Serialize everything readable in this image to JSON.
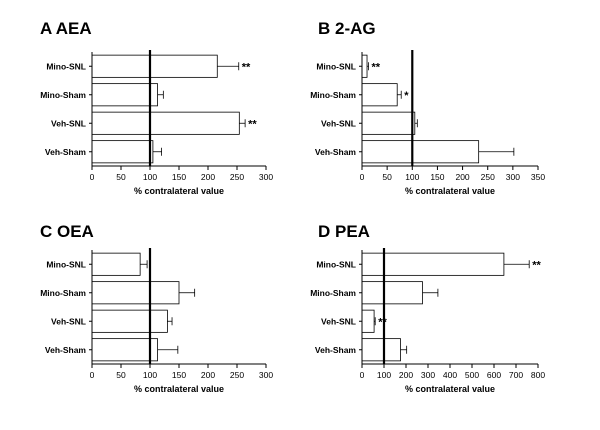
{
  "chart_data": [
    {
      "type": "bar",
      "panel": "A",
      "title": "A  AEA",
      "orientation": "horizontal",
      "categories": [
        "Mino-SNL",
        "Mino-Sham",
        "Veh-SNL",
        "Veh-Sham"
      ],
      "values": [
        216,
        113,
        254,
        105
      ],
      "errors": [
        37,
        10,
        10,
        15
      ],
      "significance": [
        "**",
        "",
        "**",
        ""
      ],
      "reference_line": 100,
      "xlabel": "% contralateral value",
      "xlim": [
        0,
        300
      ],
      "xticks": [
        0,
        50,
        100,
        150,
        200,
        250,
        300
      ]
    },
    {
      "type": "bar",
      "panel": "B",
      "title": "B  2-AG",
      "orientation": "horizontal",
      "categories": [
        "Mino-SNL",
        "Mino-Sham",
        "Veh-SNL",
        "Veh-Sham"
      ],
      "values": [
        10,
        70,
        105,
        232
      ],
      "errors": [
        3,
        8,
        5,
        70
      ],
      "significance": [
        "**",
        "*",
        "",
        ""
      ],
      "reference_line": 100,
      "xlabel": "% contralateral value",
      "xlim": [
        0,
        350
      ],
      "xticks": [
        0,
        50,
        100,
        150,
        200,
        250,
        300,
        350
      ]
    },
    {
      "type": "bar",
      "panel": "C",
      "title": "C  OEA",
      "orientation": "horizontal",
      "categories": [
        "Mino-SNL",
        "Mino-Sham",
        "Veh-SNL",
        "Veh-Sham"
      ],
      "values": [
        83,
        150,
        130,
        113
      ],
      "errors": [
        12,
        27,
        8,
        35
      ],
      "significance": [
        "",
        "",
        "",
        ""
      ],
      "reference_line": 100,
      "xlabel": "% contralateral value",
      "xlim": [
        0,
        300
      ],
      "xticks": [
        0,
        50,
        100,
        150,
        200,
        250,
        300
      ]
    },
    {
      "type": "bar",
      "panel": "D",
      "title": "D  PEA",
      "orientation": "horizontal",
      "categories": [
        "Mino-SNL",
        "Mino-Sham",
        "Veh-SNL",
        "Veh-Sham"
      ],
      "values": [
        645,
        275,
        55,
        175
      ],
      "errors": [
        115,
        70,
        5,
        28
      ],
      "significance": [
        "**",
        "",
        "**",
        ""
      ],
      "reference_line": 100,
      "xlabel": "% contralateral value",
      "xlim": [
        0,
        800
      ],
      "xticks": [
        0,
        100,
        200,
        300,
        400,
        500,
        600,
        700,
        800
      ]
    }
  ]
}
